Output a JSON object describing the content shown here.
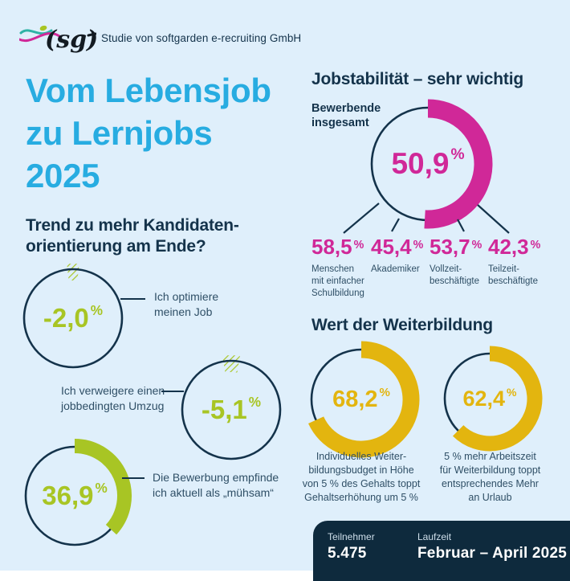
{
  "colors": {
    "bg": "#DFEFFB",
    "cyan": "#27ACE1",
    "navy": "#14334B",
    "body": "#2F4F66",
    "pink": "#D02898",
    "lime": "#A8C524",
    "yellow": "#E3B50F",
    "panel": "#0E2A3D",
    "logo_teal": "#2FB3A6",
    "logo_black": "#131B22"
  },
  "percent_sign": "%",
  "header": {
    "logo_text": "(sg)",
    "subtitle": "Studie von softgarden e-recruiting GmbH"
  },
  "title": {
    "text": "Vom Lebensjob\nzu Lernjobs\n2025"
  },
  "sections": {
    "trend": {
      "heading": "Trend zu mehr Kandidaten-\norientierung am Ende?",
      "items": [
        {
          "value": -2.0,
          "display": "-2,0",
          "label": "Ich optimiere\nmeinen Job"
        },
        {
          "value": -5.1,
          "display": "-5,1",
          "label": "Ich verweigere einen\njobbedingten Umzug"
        },
        {
          "value": 36.9,
          "display": "36,9",
          "label": "Die Bewerbung empfinde\nich aktuell als „mühsam“"
        }
      ]
    },
    "jobstability": {
      "heading": "Jobstabilität – sehr wichtig",
      "donut_label": "Bewerbende\ninsgesamt",
      "donut_value": 50.9,
      "donut_display": "50,9",
      "breakdown": [
        {
          "display": "58,5",
          "value": 58.5,
          "label": "Menschen\nmit einfacher\nSchulbildung"
        },
        {
          "display": "45,4",
          "value": 45.4,
          "label": "Akademiker"
        },
        {
          "display": "53,7",
          "value": 53.7,
          "label": "Vollzeit-\nbeschäftigte"
        },
        {
          "display": "42,3",
          "value": 42.3,
          "label": "Teilzeit-\nbeschäftigte"
        }
      ]
    },
    "weiterbildung": {
      "heading": "Wert der Weiterbildung",
      "donuts": [
        {
          "value": 68.2,
          "display": "68,2",
          "caption": "Individuelles Weiter-\nbildungsbudget in Höhe\nvon 5 % des Gehalts toppt\nGehaltserhöhung um 5 %"
        },
        {
          "value": 62.4,
          "display": "62,4",
          "caption": "5 % mehr Arbeitszeit\nfür Weiterbildung toppt\nentsprechendes Mehr\nan Urlaub"
        }
      ]
    }
  },
  "footer": {
    "participants_label": "Teilnehmer",
    "participants_value": "5.475",
    "duration_label": "Laufzeit",
    "duration_value": "Februar – April 2025"
  },
  "chart_data": [
    {
      "type": "pie",
      "variant": "donut",
      "title": "Jobstabilität – sehr wichtig",
      "unit": "%",
      "accent_color": "#D02898",
      "values": [
        {
          "label": "Bewerbende insgesamt",
          "value": 50.9
        },
        {
          "label": "Menschen mit einfacher Schulbildung",
          "value": 58.5
        },
        {
          "label": "Akademiker",
          "value": 45.4
        },
        {
          "label": "Vollzeitbeschäftigte",
          "value": 53.7
        },
        {
          "label": "Teilzeitbeschäftigte",
          "value": 42.3
        }
      ]
    },
    {
      "type": "pie",
      "variant": "donut",
      "title": "Trend zu mehr Kandidatenorientierung am Ende?",
      "unit": "%",
      "accent_color": "#A8C524",
      "values": [
        {
          "label": "Ich optimiere meinen Job",
          "value": -2.0
        },
        {
          "label": "Ich verweigere einen jobbedingten Umzug",
          "value": -5.1
        },
        {
          "label": "Die Bewerbung empfinde ich aktuell als „mühsam“",
          "value": 36.9
        }
      ]
    },
    {
      "type": "pie",
      "variant": "donut",
      "title": "Wert der Weiterbildung",
      "unit": "%",
      "accent_color": "#E3B50F",
      "values": [
        {
          "label": "Individuelles Weiterbildungsbudget in Höhe von 5 % des Gehalts toppt Gehaltserhöhung um 5 %",
          "value": 68.2
        },
        {
          "label": "5 % mehr Arbeitszeit für Weiterbildung toppt entsprechendes Mehr an Urlaub",
          "value": 62.4
        }
      ]
    }
  ]
}
